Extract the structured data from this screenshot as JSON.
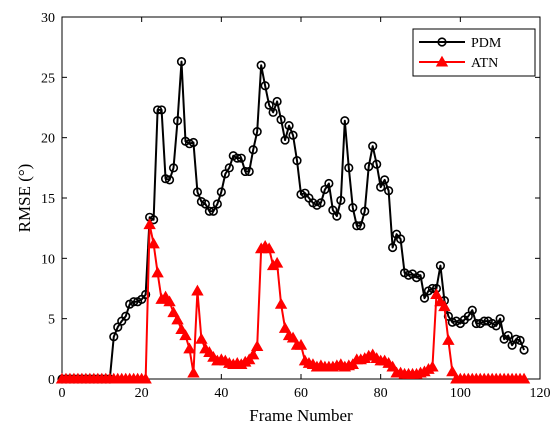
{
  "chart_data": {
    "type": "line",
    "xlabel": "Frame Number",
    "ylabel": "RMSE (°)",
    "xlim": [
      0,
      120
    ],
    "ylim": [
      0,
      30
    ],
    "xticks": [
      0,
      20,
      40,
      60,
      80,
      100,
      120
    ],
    "yticks": [
      0,
      5,
      10,
      15,
      20,
      25,
      30
    ],
    "grid": false,
    "legend_position": "top-right",
    "series": [
      {
        "name": "PDM",
        "color": "#000000",
        "marker": "circle",
        "x": [
          0,
          1,
          2,
          3,
          4,
          5,
          6,
          7,
          8,
          9,
          10,
          11,
          12,
          13,
          14,
          15,
          16,
          17,
          18,
          19,
          20,
          21,
          22,
          23,
          24,
          25,
          26,
          27,
          28,
          29,
          30,
          31,
          32,
          33,
          34,
          35,
          36,
          37,
          38,
          39,
          40,
          41,
          42,
          43,
          44,
          45,
          46,
          47,
          48,
          49,
          50,
          51,
          52,
          53,
          54,
          55,
          56,
          57,
          58,
          59,
          60,
          61,
          62,
          63,
          64,
          65,
          66,
          67,
          68,
          69,
          70,
          71,
          72,
          73,
          74,
          75,
          76,
          77,
          78,
          79,
          80,
          81,
          82,
          83,
          84,
          85,
          86,
          87,
          88,
          89,
          90,
          91,
          92,
          93,
          94,
          95,
          96,
          97,
          98,
          99,
          100,
          101,
          102,
          103,
          104,
          105,
          106,
          107,
          108,
          109,
          110,
          111,
          112,
          113,
          114,
          115,
          116
        ],
        "y": [
          0,
          0,
          0,
          0,
          0,
          0,
          0,
          0,
          0,
          0,
          0,
          0,
          0,
          3.5,
          4.3,
          4.8,
          5.2,
          6.2,
          6.4,
          6.4,
          6.6,
          7.0,
          13.4,
          13.2,
          22.3,
          22.3,
          16.6,
          16.5,
          17.5,
          21.4,
          26.3,
          19.7,
          19.5,
          19.6,
          15.5,
          14.7,
          14.5,
          13.9,
          13.9,
          14.5,
          15.5,
          17.0,
          17.5,
          18.5,
          18.3,
          18.3,
          17.2,
          17.2,
          19.0,
          20.5,
          26.0,
          24.3,
          22.7,
          22.1,
          23.0,
          21.5,
          19.8,
          21.0,
          20.2,
          18.1,
          15.3,
          15.4,
          15.0,
          14.6,
          14.4,
          14.6,
          15.7,
          16.2,
          14.0,
          13.5,
          14.8,
          21.4,
          17.5,
          14.2,
          12.7,
          12.7,
          13.9,
          17.6,
          19.3,
          17.8,
          15.9,
          16.5,
          15.6,
          10.9,
          12.0,
          11.6,
          8.8,
          8.6,
          8.7,
          8.4,
          8.6,
          6.7,
          7.3,
          7.5,
          7.5,
          9.4,
          6.5,
          5.2,
          4.7,
          4.8,
          4.6,
          4.9,
          5.2,
          5.7,
          4.6,
          4.6,
          4.8,
          4.8,
          4.6,
          4.4,
          5.0,
          3.3,
          3.6,
          2.8,
          3.3,
          3.2,
          2.4
        ]
      },
      {
        "name": "ATN",
        "color": "#ff0000",
        "marker": "triangle",
        "x": [
          0,
          1,
          2,
          3,
          4,
          5,
          6,
          7,
          8,
          9,
          10,
          11,
          12,
          13,
          14,
          15,
          16,
          17,
          18,
          19,
          20,
          21,
          22,
          23,
          24,
          25,
          26,
          27,
          28,
          29,
          30,
          31,
          32,
          33,
          34,
          35,
          36,
          37,
          38,
          39,
          40,
          41,
          42,
          43,
          44,
          45,
          46,
          47,
          48,
          49,
          50,
          51,
          52,
          53,
          54,
          55,
          56,
          57,
          58,
          59,
          60,
          61,
          62,
          63,
          64,
          65,
          66,
          67,
          68,
          69,
          70,
          71,
          72,
          73,
          74,
          75,
          76,
          77,
          78,
          79,
          80,
          81,
          82,
          83,
          84,
          85,
          86,
          87,
          88,
          89,
          90,
          91,
          92,
          93,
          94,
          95,
          96,
          97,
          98,
          99,
          100,
          101,
          102,
          103,
          104,
          105,
          106,
          107,
          108,
          109,
          110,
          111,
          112,
          113,
          114,
          115,
          116
        ],
        "y": [
          0,
          0,
          0,
          0,
          0,
          0,
          0,
          0,
          0,
          0,
          0,
          0,
          0,
          0,
          0,
          0,
          0,
          0,
          0,
          0,
          0,
          0,
          12.8,
          11.2,
          8.8,
          6.6,
          6.8,
          6.4,
          5.5,
          4.9,
          4.1,
          3.6,
          2.5,
          0.5,
          7.3,
          3.3,
          2.5,
          2.2,
          1.8,
          1.5,
          1.6,
          1.5,
          1.3,
          1.2,
          1.3,
          1.2,
          1.4,
          1.6,
          2.0,
          2.7,
          10.8,
          11.0,
          10.8,
          9.4,
          9.6,
          6.2,
          4.2,
          3.6,
          3.4,
          2.8,
          2.8,
          1.5,
          1.3,
          1.2,
          1.0,
          1.1,
          1.0,
          1.0,
          1.0,
          1.1,
          1.2,
          1.0,
          1.1,
          1.2,
          1.6,
          1.6,
          1.7,
          1.9,
          2.0,
          1.7,
          1.5,
          1.5,
          1.3,
          1.0,
          0.5,
          0.5,
          0.4,
          0.4,
          0.4,
          0.4,
          0.5,
          0.6,
          0.8,
          1.0,
          7.0,
          6.4,
          6.0,
          3.2,
          0.6,
          0,
          0,
          0,
          0,
          0,
          0,
          0,
          0,
          0,
          0,
          0,
          0,
          0,
          0,
          0,
          0,
          0,
          0
        ]
      }
    ]
  }
}
